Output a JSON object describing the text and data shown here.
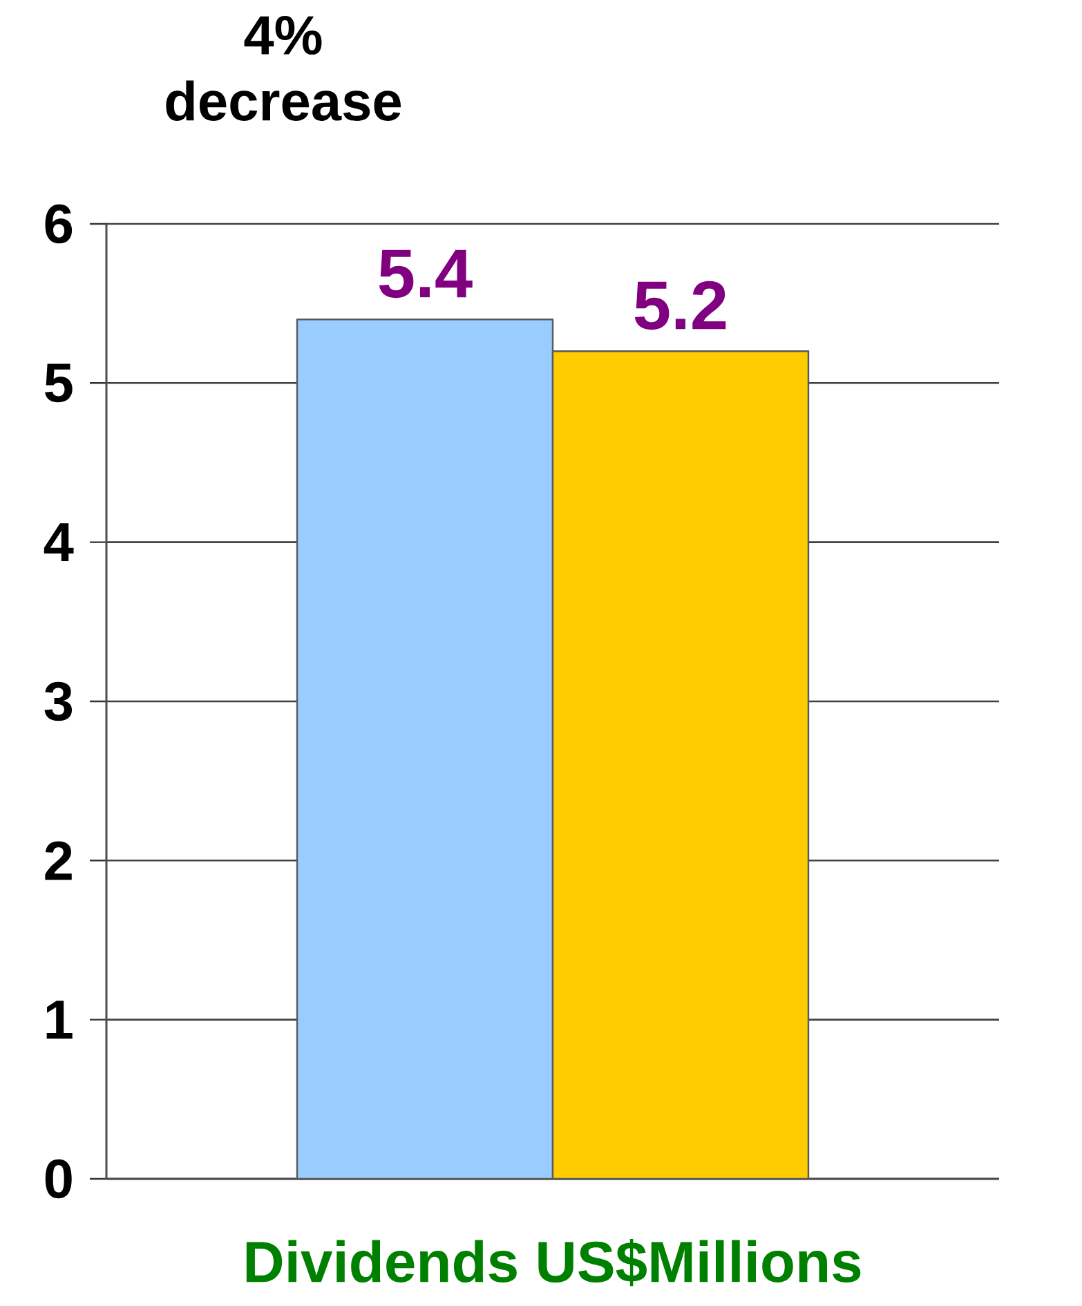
{
  "chart_data": {
    "type": "bar",
    "categories": [
      null,
      null
    ],
    "values": [
      5.4,
      5.2
    ],
    "colors": [
      "#99ccff",
      "#ffcc00"
    ],
    "value_labels": [
      "5.4",
      "5.2"
    ],
    "xlabel": "Dividends US$Millions",
    "annotations": [
      "4% decrease"
    ],
    "ylim": [
      0,
      6
    ],
    "yticks": [
      0,
      1,
      2,
      3,
      4,
      5,
      6
    ],
    "grid": "y",
    "tick_labels": "y"
  }
}
